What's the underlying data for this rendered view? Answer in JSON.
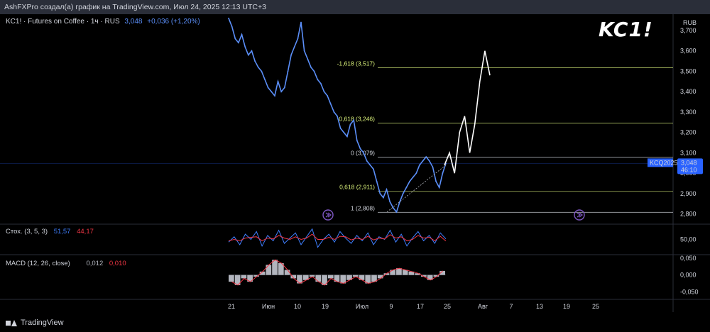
{
  "header": {
    "caption": "AshFXPro создал(а) график на TradingView.com, Июл 24, 2025 12:13 UTC+3"
  },
  "legend": {
    "symbol": "KC1! · Futures on Coffee · 1ч · RUS",
    "last": "3,048",
    "change": "+0,036 (+1,20%)"
  },
  "watermark": "KC1!",
  "currency": "RUB",
  "price_tag": {
    "contract": "KCQ2025",
    "price": "3,048",
    "countdown": "46:10"
  },
  "stoch": {
    "name": "Стох. (3, 5, 3)",
    "k": "51,57",
    "d": "44,17"
  },
  "macd": {
    "name": "MACD (12, 26, close)",
    "hist": "0,012",
    "signal": "0,010"
  },
  "footer": {
    "brand": "TradingView"
  },
  "colors": {
    "price_line": "#5b8ff9",
    "fib_line": "#d9f07a",
    "stoch_k": "#3f7fff",
    "stoch_d": "#f23645",
    "macd_hist": "#b2b5be",
    "macd_signal": "#f23645",
    "price_tag_bg": "#2962ff",
    "projection": "#ffffff",
    "marker": "#7e57c2"
  },
  "icons": [
    "replay-marker-icon",
    "tradingview-logo-icon"
  ],
  "chart_data": [
    {
      "type": "line",
      "panel": "price",
      "ylim": [
        2.75,
        3.78
      ],
      "y_ticks": [
        "3,700",
        "3,600",
        "3,500",
        "3,400",
        "3,300",
        "3,200",
        "3,100",
        "3,000",
        "2,900",
        "2,800"
      ],
      "y_tick_values": [
        3.7,
        3.6,
        3.5,
        3.4,
        3.3,
        3.2,
        3.1,
        3.0,
        2.9,
        2.8
      ],
      "x_ticks": [
        "21",
        "Июн",
        "10",
        "19",
        "Июл",
        "9",
        "17",
        "25",
        "Авг",
        "7",
        "13",
        "19",
        "25"
      ],
      "series": [
        {
          "values": [
            3.76,
            3.72,
            3.66,
            3.64,
            3.68,
            3.62,
            3.58,
            3.6,
            3.55,
            3.52,
            3.5,
            3.46,
            3.42,
            3.4,
            3.38,
            3.45,
            3.4,
            3.42,
            3.5,
            3.58,
            3.62,
            3.66,
            3.74,
            3.6,
            3.56,
            3.52,
            3.5,
            3.46,
            3.44,
            3.4,
            3.38,
            3.34,
            3.3,
            3.28,
            3.22,
            3.2,
            3.18,
            3.24,
            3.26,
            3.16,
            3.12,
            3.1,
            3.06,
            3.04,
            3.02,
            2.96,
            2.9,
            2.88,
            2.92,
            2.86,
            2.83,
            2.81,
            2.86,
            2.9,
            2.93,
            2.96,
            2.98,
            3.0,
            3.04,
            3.06,
            3.08,
            3.06,
            3.03,
            2.96,
            2.93,
            3.0,
            3.048
          ]
        }
      ]
    },
    {
      "type": "table",
      "panel": "fibonacci",
      "levels": [
        {
          "label": "-1,618 (3,517)",
          "price": 3.517
        },
        {
          "label": "0,618 (3,246)",
          "price": 3.246
        },
        {
          "label": "0 (3,079)",
          "price": 3.079
        },
        {
          "label": "0,618 (2,911)",
          "price": 2.911
        },
        {
          "label": "1 (2,808)",
          "price": 2.808
        }
      ]
    },
    {
      "type": "line",
      "panel": "projection",
      "ylim": [
        2.75,
        3.78
      ],
      "series": [
        {
          "values": [
            3.04,
            3.1,
            3.0,
            3.2,
            3.28,
            3.1,
            3.24,
            3.45,
            3.6,
            3.48
          ]
        }
      ]
    },
    {
      "type": "line",
      "panel": "stochastic",
      "ylim": [
        0,
        100
      ],
      "y_ticks": [
        "50,00"
      ],
      "y_tick_values": [
        50
      ],
      "series": [
        {
          "name": "K",
          "values": [
            40,
            60,
            30,
            70,
            50,
            80,
            25,
            65,
            45,
            85,
            35,
            55,
            75,
            30,
            60,
            90,
            20,
            50,
            70,
            40,
            80,
            55,
            35,
            65,
            45,
            75,
            30,
            60,
            50,
            85,
            40,
            70,
            25,
            55,
            80,
            45,
            65,
            35,
            75,
            52
          ]
        },
        {
          "name": "D",
          "values": [
            45,
            50,
            45,
            55,
            58,
            60,
            45,
            55,
            52,
            65,
            55,
            50,
            60,
            50,
            55,
            70,
            50,
            50,
            58,
            50,
            62,
            60,
            48,
            55,
            50,
            62,
            48,
            55,
            52,
            68,
            55,
            60,
            45,
            50,
            65,
            55,
            58,
            45,
            62,
            44
          ]
        }
      ]
    },
    {
      "type": "bar",
      "panel": "macd",
      "ylim": [
        -0.07,
        0.06
      ],
      "y_ticks": [
        "0,050",
        "0,000",
        "-0,050"
      ],
      "y_tick_values": [
        0.05,
        0.0,
        -0.05
      ],
      "values": [
        -0.02,
        -0.03,
        -0.01,
        -0.02,
        -0.005,
        0.01,
        0.03,
        0.045,
        0.035,
        0.015,
        -0.01,
        -0.025,
        -0.015,
        -0.005,
        -0.02,
        -0.03,
        -0.01,
        -0.02,
        -0.025,
        -0.015,
        -0.005,
        -0.015,
        -0.025,
        -0.02,
        -0.01,
        0.005,
        0.015,
        0.02,
        0.015,
        0.01,
        0.005,
        -0.005,
        -0.015,
        -0.005,
        0.012
      ]
    }
  ]
}
